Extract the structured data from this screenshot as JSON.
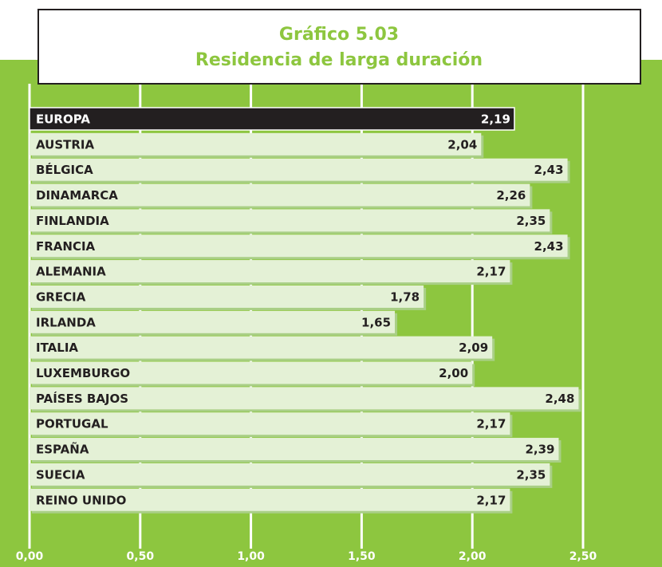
{
  "chart_data": {
    "type": "barh",
    "title": "Gráfico 5.03",
    "subtitle": "Residencia de larga duración",
    "categories": [
      "EUROPA",
      "AUSTRIA",
      "BÉLGICA",
      "DINAMARCA",
      "FINLANDIA",
      "FRANCIA",
      "ALEMANIA",
      "GRECIA",
      "IRLANDA",
      "ITALIA",
      "LUXEMBURGO",
      "PAÍSES BAJOS",
      "PORTUGAL",
      "ESPAÑA",
      "SUECIA",
      "REINO UNIDO"
    ],
    "values": [
      2.19,
      2.04,
      2.43,
      2.26,
      2.35,
      2.43,
      2.17,
      1.78,
      1.65,
      2.09,
      2.0,
      2.48,
      2.17,
      2.39,
      2.35,
      2.17
    ],
    "value_labels": [
      "2,19",
      "2,04",
      "2,43",
      "2,26",
      "2,35",
      "2,43",
      "2,17",
      "1,78",
      "1,65",
      "2,09",
      "2,00",
      "2,48",
      "2,17",
      "2,39",
      "2,35",
      "2,17"
    ],
    "colors": [
      "#231f20",
      "#e4f1d6",
      "#e4f1d6",
      "#e4f1d6",
      "#e4f1d6",
      "#e4f1d6",
      "#e4f1d6",
      "#e4f1d6",
      "#e4f1d6",
      "#e4f1d6",
      "#e4f1d6",
      "#e4f1d6",
      "#e4f1d6",
      "#e4f1d6",
      "#e4f1d6",
      "#e4f1d6"
    ],
    "xlim": [
      0,
      2.5
    ],
    "xticks": [
      {
        "value": 0,
        "label": "0,00"
      },
      {
        "value": 0.5,
        "label": "0,50"
      },
      {
        "value": 1,
        "label": "1,00"
      },
      {
        "value": 1.5,
        "label": "1,50"
      },
      {
        "value": 2,
        "label": "2,00"
      },
      {
        "value": 2.5,
        "label": "2,50"
      }
    ],
    "grid": true
  }
}
